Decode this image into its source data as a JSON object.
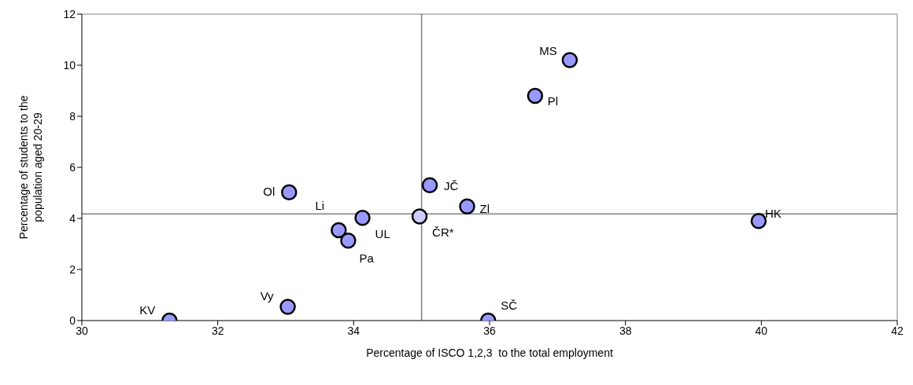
{
  "chart_data": {
    "type": "scatter",
    "xlabel": "Percentage of ISCO 1,2,3  to the total employment",
    "ylabel": "Percentage of students to the population aged 20-29",
    "x": [
      31.29,
      33.03,
      33.05,
      33.78,
      33.92,
      34.13,
      34.97,
      35.12,
      35.67,
      35.98,
      37.18,
      36.67,
      39.96
    ],
    "values": [
      0,
      0.54,
      5.02,
      3.54,
      3.13,
      4.02,
      4.08,
      5.3,
      4.47,
      0,
      10.2,
      8.8,
      3.9
    ],
    "colors": [
      "#9999ff",
      "#9999ff",
      "#9999ff",
      "#9999ff",
      "#9999ff",
      "#9999ff",
      "#ccccff",
      "#9999ff",
      "#9999ff",
      "#9999ff",
      "#9999ff",
      "#9999ff",
      "#9999ff"
    ],
    "marker": "circle",
    "xlim": [
      30,
      42
    ],
    "xticks": [
      30,
      32,
      34,
      36,
      38,
      40,
      42
    ],
    "ylim": [
      0,
      12
    ],
    "yticks": [
      0,
      2,
      4,
      6,
      8,
      10,
      12
    ],
    "grid": false,
    "legend": false,
    "ref_lines": [
      {
        "axis": "y",
        "value": 4.18,
        "color": "#808080"
      },
      {
        "axis": "x",
        "value": 35,
        "color": "#808080"
      }
    ],
    "annotations": [
      {
        "text": "KV",
        "x": 31.29,
        "y": 0
      },
      {
        "text": "Vy",
        "x": 33.03,
        "y": 0.54
      },
      {
        "text": "Ol",
        "x": 33.05,
        "y": 5.02
      },
      {
        "text": "Li",
        "x": 33.78,
        "y": 3.54
      },
      {
        "text": "Pa",
        "x": 33.92,
        "y": 3.13
      },
      {
        "text": "UL",
        "x": 34.13,
        "y": 4.02
      },
      {
        "text": "ČR*",
        "x": 34.97,
        "y": 4.08
      },
      {
        "text": "JČ",
        "x": 35.12,
        "y": 5.3
      },
      {
        "text": "Zl",
        "x": 35.67,
        "y": 4.47
      },
      {
        "text": "SČ",
        "x": 35.98,
        "y": 0
      },
      {
        "text": "MS",
        "x": 37.18,
        "y": 10.2
      },
      {
        "text": "Pl",
        "x": 36.67,
        "y": 8.8
      },
      {
        "text": "HK",
        "x": 39.96,
        "y": 3.9
      }
    ]
  }
}
